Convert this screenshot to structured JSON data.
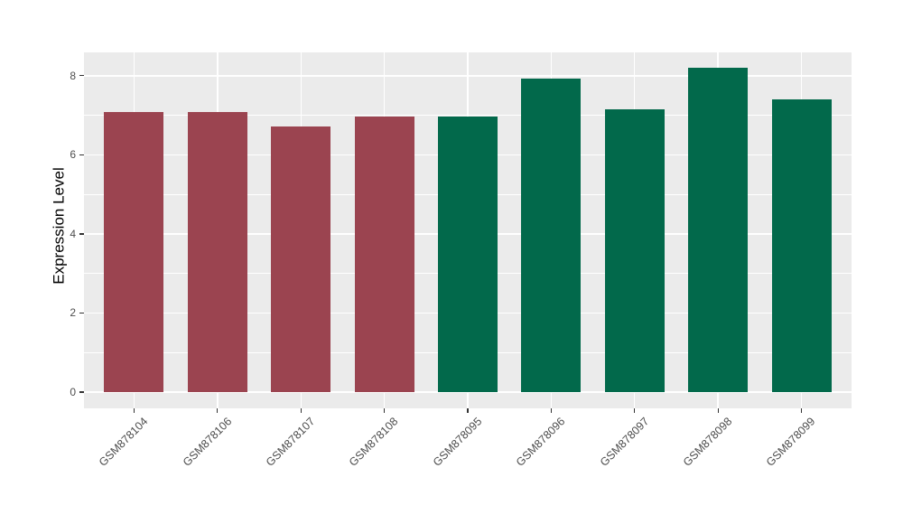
{
  "chart_data": {
    "type": "bar",
    "title": "",
    "xlabel": "",
    "ylabel": "Expression Level",
    "categories": [
      "GSM878104",
      "GSM878106",
      "GSM878107",
      "GSM878108",
      "GSM878095",
      "GSM878096",
      "GSM878097",
      "GSM878098",
      "GSM878099"
    ],
    "values": [
      7.09,
      7.08,
      6.72,
      6.96,
      6.97,
      7.92,
      7.15,
      8.21,
      7.41
    ],
    "bar_colors": [
      "#9B4450",
      "#9B4450",
      "#9B4450",
      "#9B4450",
      "#02694B",
      "#02694B",
      "#02694B",
      "#02694B",
      "#02694B"
    ],
    "groups": [
      {
        "color": "#9B4450",
        "categories": [
          "GSM878104",
          "GSM878106",
          "GSM878107",
          "GSM878108"
        ]
      },
      {
        "color": "#02694B",
        "categories": [
          "GSM878095",
          "GSM878096",
          "GSM878097",
          "GSM878098",
          "GSM878099"
        ]
      }
    ],
    "y_ticks": [
      0,
      2,
      4,
      6,
      8
    ],
    "ylim": [
      -0.41,
      8.59
    ],
    "x_tick_rotation": 45,
    "legend_position": "none",
    "grid": "major-and-minor-horizontal, major-vertical",
    "colors": {
      "panel_background": "#EBEBEB",
      "grid": "#FFFFFF",
      "tick_mark": "#333333",
      "tick_label": "#4D4D4D",
      "axis_title": "#000000",
      "figure_background": "#FFFFFF"
    }
  }
}
